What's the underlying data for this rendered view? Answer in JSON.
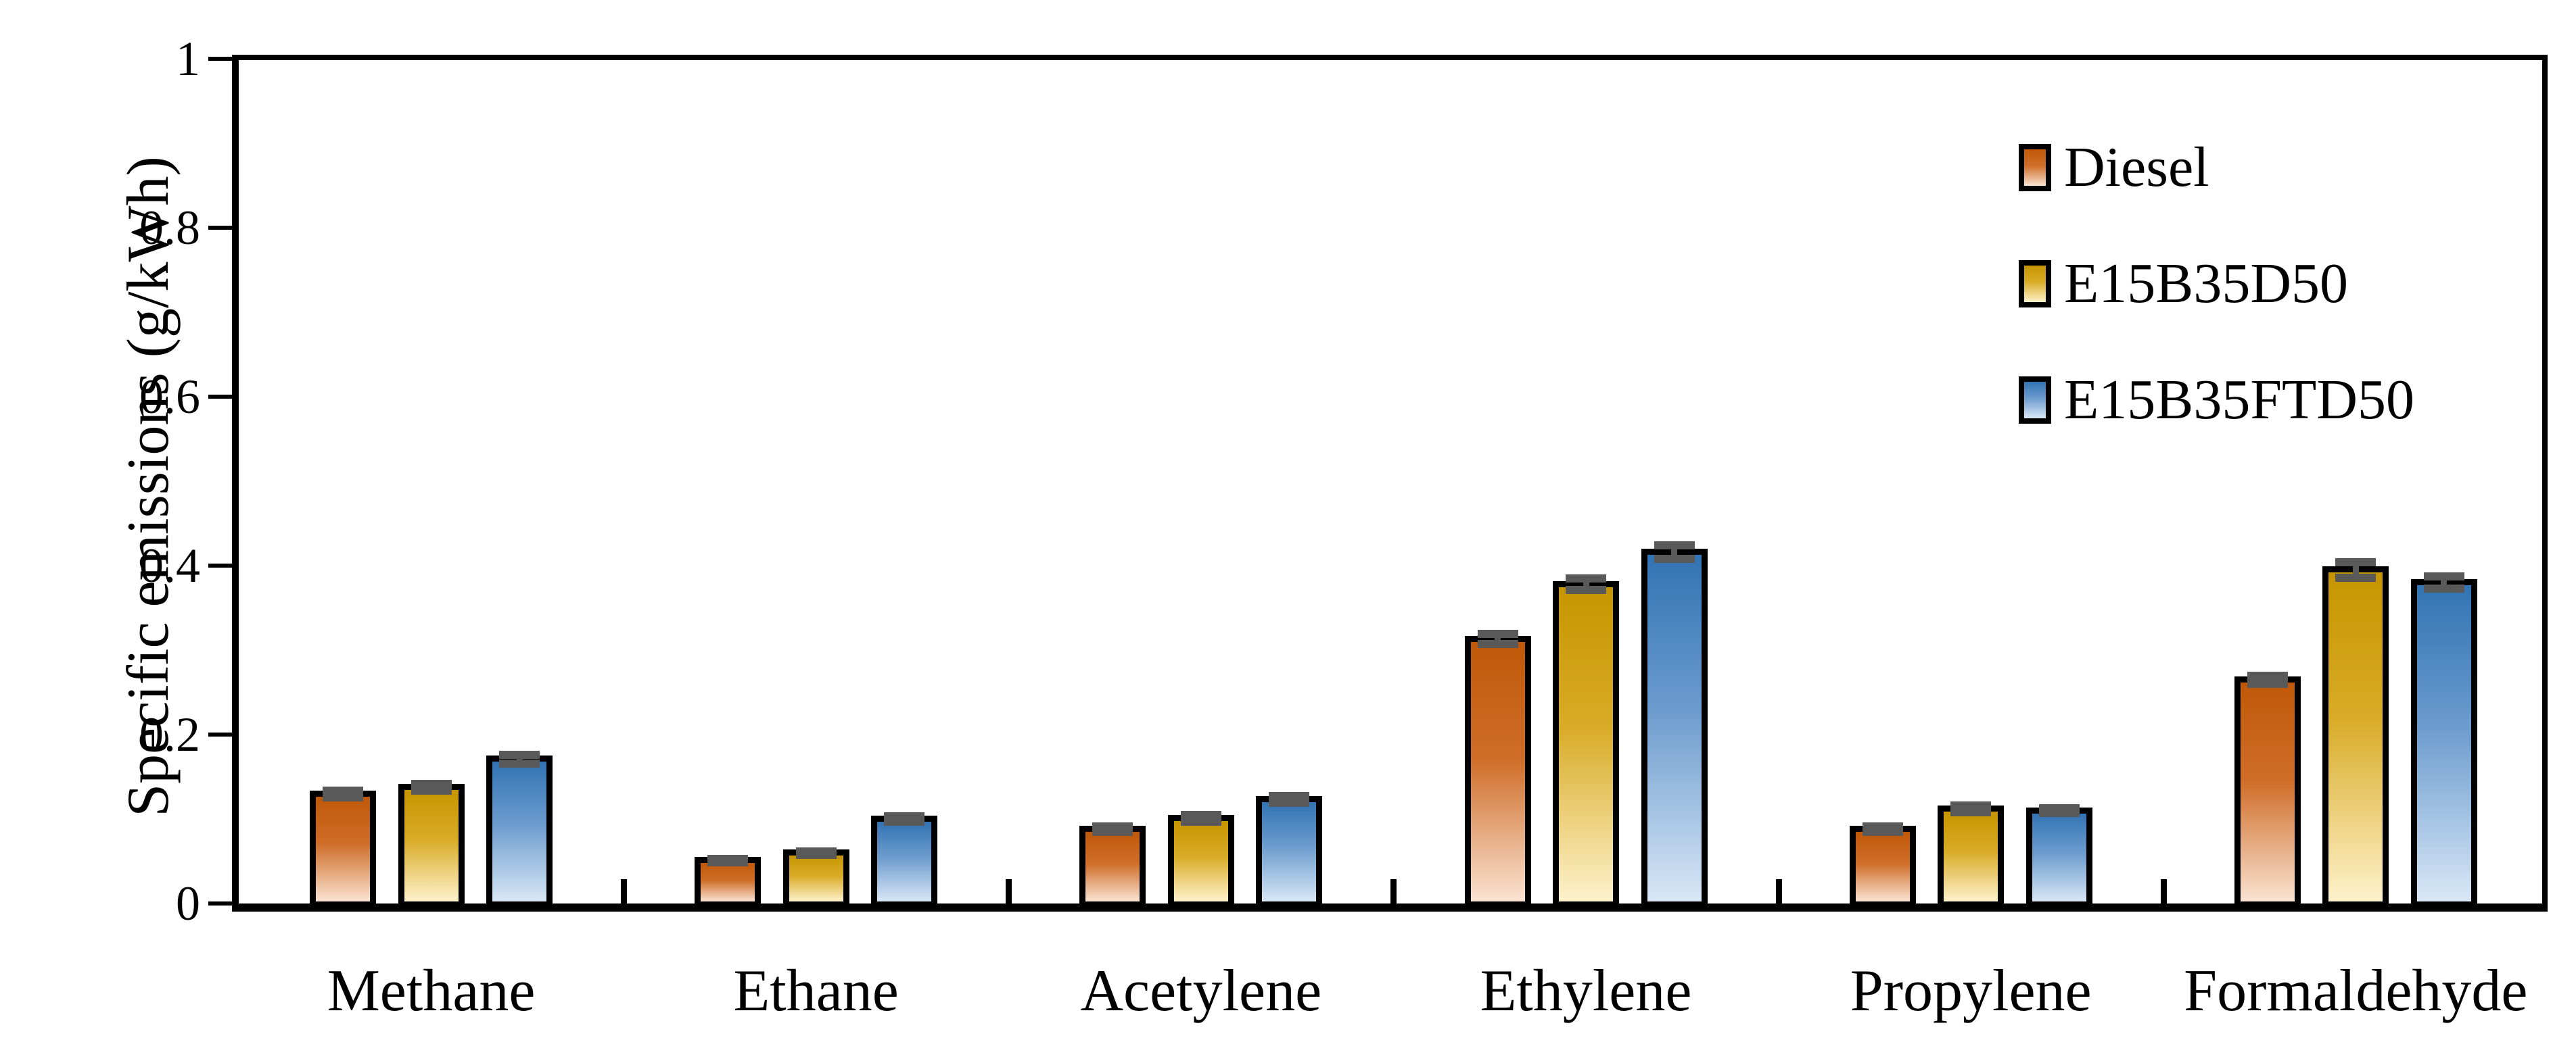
{
  "chart_data": {
    "type": "bar",
    "title": "",
    "xlabel": "",
    "ylabel": "Specific emissions (g/kWh)",
    "ylim": [
      0,
      1
    ],
    "yticks": [
      0,
      0.2,
      0.4,
      0.6,
      0.8,
      1
    ],
    "ytick_labels": [
      "0",
      "0.2",
      "0.4",
      "0.6",
      "0.8",
      "1"
    ],
    "grid": false,
    "legend_position": "top-right-inside",
    "error_bar_color": "#595959",
    "bar_border_color": "#000000",
    "categories": [
      "Methane",
      "Ethane",
      "Acetylene",
      "Ethylene",
      "Propylene",
      "Formaldehyde"
    ],
    "series": [
      {
        "name": "Diesel",
        "color_top": "#C05808",
        "color_mid": "#CF6D28",
        "color_bottom": "#FAE3D2",
        "values": [
          0.13,
          0.051,
          0.088,
          0.313,
          0.088,
          0.265
        ],
        "errors": [
          0.004,
          0.002,
          0.003,
          0.006,
          0.003,
          0.005
        ]
      },
      {
        "name": "E15B35D50",
        "color_top": "#C69500",
        "color_mid": "#D9AC28",
        "color_bottom": "#FEF2CC",
        "values": [
          0.138,
          0.06,
          0.101,
          0.378,
          0.112,
          0.395
        ],
        "errors": [
          0.004,
          0.002,
          0.004,
          0.007,
          0.004,
          0.009
        ]
      },
      {
        "name": "E15B35FTD50",
        "color_top": "#3273B3",
        "color_mid": "#6C9CCE",
        "color_bottom": "#D9E7F6",
        "values": [
          0.171,
          0.1,
          0.123,
          0.416,
          0.11,
          0.38
        ],
        "errors": [
          0.005,
          0.003,
          0.004,
          0.008,
          0.003,
          0.007
        ]
      }
    ]
  }
}
